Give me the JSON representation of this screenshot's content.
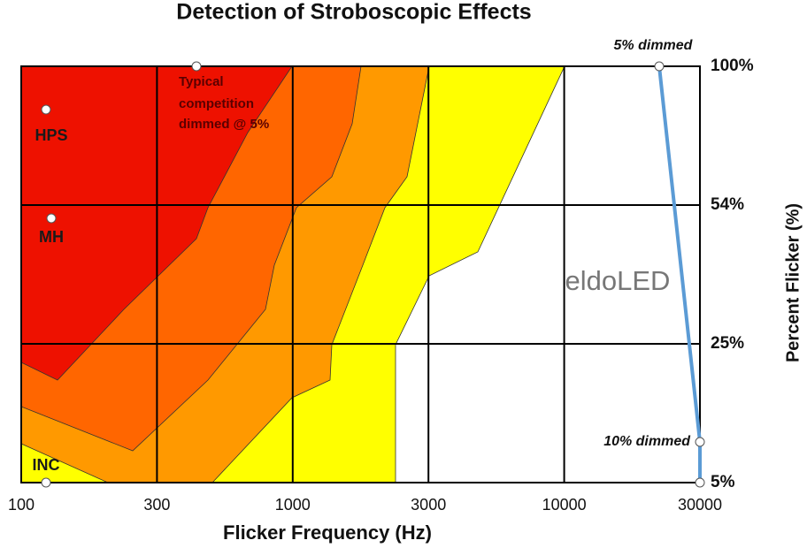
{
  "chart_data": {
    "type": "contour",
    "title": "Detection of Stroboscopic Effects",
    "x_label": "Flicker Frequency (Hz)",
    "y_label": "Percent Flicker (%)",
    "xticks": [
      100,
      300,
      1000,
      3000,
      10000,
      30000
    ],
    "yticks": [
      {
        "value": 5,
        "label": "5%"
      },
      {
        "value": 25,
        "label": "25%"
      },
      {
        "value": 54,
        "label": "54%"
      },
      {
        "value": 100,
        "label": "100%"
      }
    ],
    "grid": true,
    "annotations": {
      "hps": "HPS",
      "mh": "MH",
      "inc": "INC",
      "competition": [
        "Typical",
        "competition",
        "dimmed @ 5%"
      ],
      "dimmed_5": "5% dimmed",
      "dimmed_10": "10% dimmed"
    },
    "line_color": "#5b9bd5",
    "watermark": "eldoLED"
  }
}
